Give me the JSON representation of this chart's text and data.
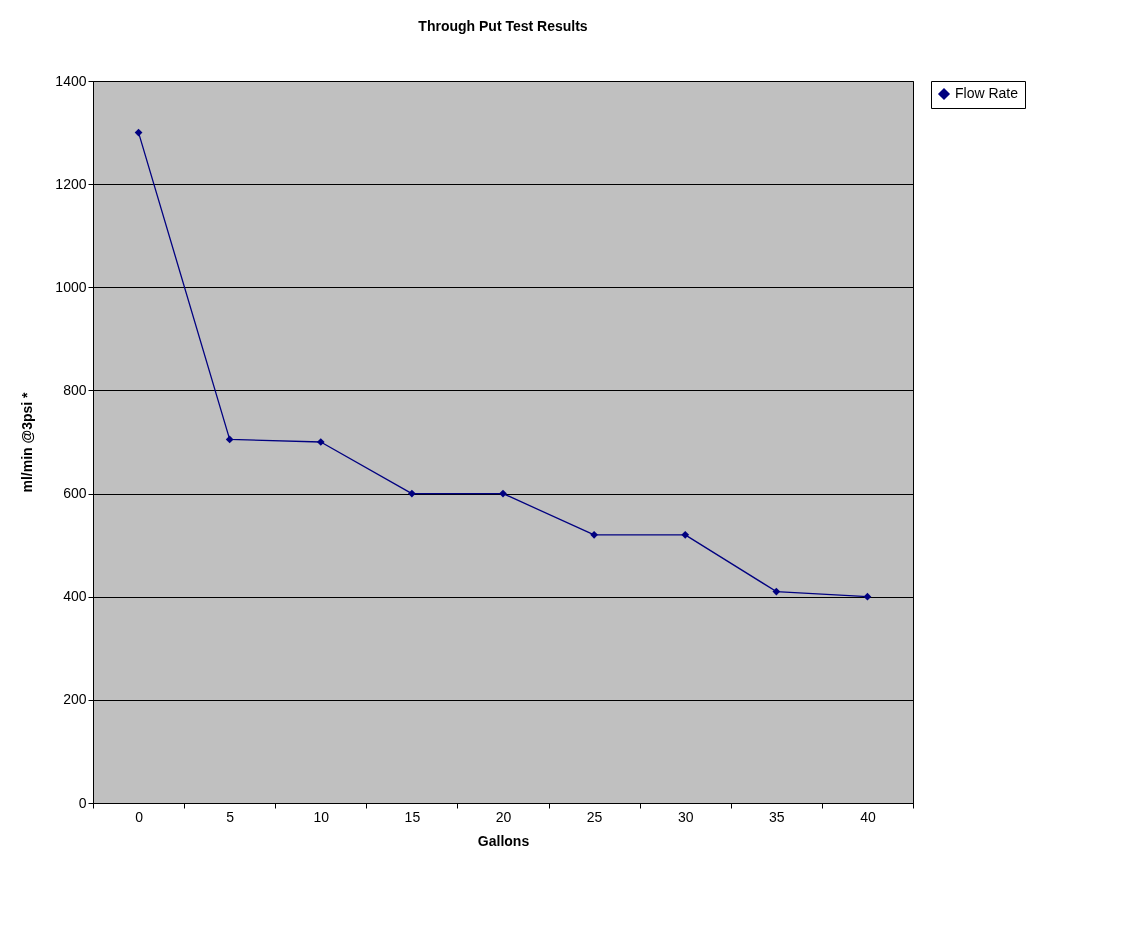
{
  "chart_data": {
    "type": "line",
    "title": "Through Put Test Results",
    "xlabel": "Gallons",
    "ylabel": "ml/min @3psi *",
    "categories": [
      "0",
      "5",
      "10",
      "15",
      "20",
      "25",
      "30",
      "35",
      "40"
    ],
    "series": [
      {
        "name": "Flow Rate",
        "color": "#000080",
        "values": [
          1300,
          705,
          700,
          600,
          600,
          520,
          520,
          410,
          400
        ]
      }
    ],
    "ylim": [
      0,
      1400
    ],
    "yticks": [
      0,
      200,
      400,
      600,
      800,
      1000,
      1200,
      1400
    ],
    "grid": "y",
    "legend": "right",
    "marker": "diamond",
    "line_style": "solid"
  }
}
